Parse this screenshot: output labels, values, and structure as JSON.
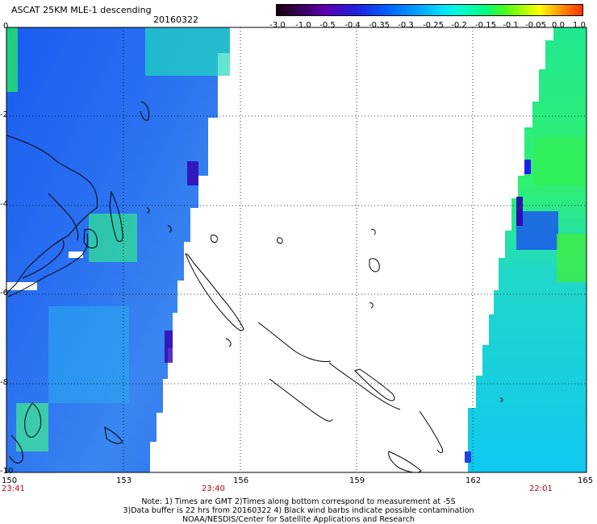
{
  "title": "ASCAT 25KM MLE-1 descending",
  "date": "20160322",
  "colorbar": {
    "labels": [
      "-3.0",
      "-1.0",
      "-0.5",
      "-0.4",
      "-0.35",
      "-0.3",
      "-0.25",
      "-0.2",
      "-0.15",
      "-0.1",
      "-0.05",
      "0.0",
      "1.0"
    ]
  },
  "axes": {
    "x_ticks": [
      "150",
      "153",
      "156",
      "159",
      "162",
      "165"
    ],
    "y_ticks": [
      "0",
      "-2",
      "-4",
      "-6",
      "-8",
      "-10"
    ]
  },
  "times": [
    "23:41",
    "23:40",
    "22:01"
  ],
  "note": {
    "line1": "Note: 1) Times are GMT 2)Times along bottom correspond to measurement at -5S",
    "line2": "3)Data buffer is 22 hrs from 20160322 4) Black wind barbs indicate possible contamination",
    "line3": "NOAA/NESDIS/Center for Satellite Applications and Research"
  },
  "colors": {
    "land_outline": "#000000",
    "grid": "#000000",
    "time_label": "#c00000"
  }
}
